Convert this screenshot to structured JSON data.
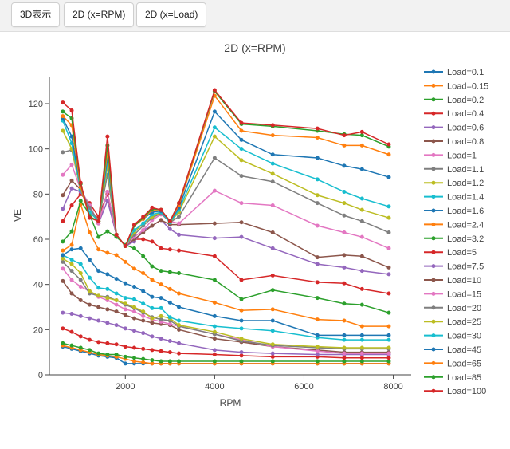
{
  "toolbar": {
    "btn_3d": "3D表示",
    "btn_rpm": "2D (x=RPM)",
    "btn_load": "2D (x=Load)"
  },
  "chart_data": {
    "type": "line",
    "title": "2D (x=RPM)",
    "xlabel": "RPM",
    "ylabel": "VE",
    "xlim": [
      300,
      8400
    ],
    "ylim": [
      0,
      132
    ],
    "xticks": [
      2000,
      4000,
      6000,
      8000
    ],
    "yticks": [
      0,
      20,
      40,
      60,
      80,
      100,
      120
    ],
    "grid": false,
    "legend": "right",
    "x": [
      600,
      800,
      1000,
      1200,
      1400,
      1600,
      1800,
      2000,
      2200,
      2400,
      2600,
      2800,
      3000,
      3200,
      4000,
      4600,
      5300,
      6300,
      6900,
      7300,
      7900
    ],
    "series": [
      {
        "name": "Load=0.1",
        "color": "#1f77b4",
        "values": [
          12.5,
          11.5,
          10.5,
          9.5,
          8.5,
          8,
          7.5,
          5,
          5,
          5,
          5,
          5,
          5,
          5,
          5,
          5,
          5,
          5,
          5,
          5,
          5
        ]
      },
      {
        "name": "Load=0.15",
        "color": "#ff7f0e",
        "values": [
          13,
          12,
          11,
          10,
          9,
          8.5,
          8,
          7,
          6,
          5.5,
          5,
          5,
          5,
          5,
          5,
          5,
          5,
          5,
          5,
          5,
          5
        ]
      },
      {
        "name": "Load=0.2",
        "color": "#2ca02c",
        "values": [
          14,
          13,
          12,
          11,
          9.5,
          9,
          9,
          8,
          7.5,
          7,
          6.5,
          6,
          6,
          6,
          6,
          6,
          6,
          6,
          6,
          6,
          6
        ]
      },
      {
        "name": "Load=0.4",
        "color": "#d62728",
        "values": [
          20.5,
          19,
          17,
          15.5,
          14.5,
          14,
          13.5,
          12.5,
          12,
          11.5,
          11,
          10.5,
          10,
          9.5,
          9,
          8.5,
          8,
          8,
          7.5,
          7.5,
          7.5
        ]
      },
      {
        "name": "Load=0.6",
        "color": "#9467bd",
        "values": [
          27.5,
          27,
          26,
          25,
          24,
          23,
          22,
          20.5,
          19.5,
          18.5,
          17,
          16,
          15,
          14,
          11,
          10,
          9.5,
          9,
          9,
          9,
          9
        ]
      },
      {
        "name": "Load=0.8",
        "color": "#8c564b",
        "values": [
          41.5,
          36,
          33,
          31,
          30,
          29,
          28,
          26.5,
          25,
          24,
          23,
          22.5,
          22,
          20,
          16,
          14.5,
          12.5,
          11,
          10,
          10,
          10
        ]
      },
      {
        "name": "Load=1",
        "color": "#e377c2",
        "values": [
          47,
          42,
          39,
          37,
          34.5,
          33,
          31,
          29,
          28,
          26,
          24.5,
          23.5,
          22.5,
          21.5,
          18,
          15.5,
          12.5,
          10.5,
          9.5,
          9.5,
          9.5
        ]
      },
      {
        "name": "Load=1.1",
        "color": "#7f7f7f",
        "values": [
          50,
          46,
          42,
          36,
          35,
          34.5,
          33,
          31,
          29.5,
          27.5,
          25.5,
          24.5,
          24,
          21.5,
          18,
          15,
          13,
          12,
          11.5,
          11.5,
          11.5
        ]
      },
      {
        "name": "Load=1.2",
        "color": "#bcbd22",
        "values": [
          51.5,
          49,
          45,
          37,
          35,
          34,
          33,
          31.5,
          30,
          28,
          25,
          26,
          25,
          22,
          19,
          16,
          13.5,
          12.5,
          12,
          12,
          12
        ]
      },
      {
        "name": "Load=1.4",
        "color": "#17becf",
        "values": [
          53,
          51,
          49,
          43,
          38.5,
          38,
          36,
          34,
          33.5,
          31.5,
          29.5,
          29.5,
          25.5,
          24,
          21.5,
          20.5,
          19.5,
          16.5,
          15.5,
          15.5,
          15.5
        ]
      },
      {
        "name": "Load=1.6",
        "color": "#1f77b4",
        "values": [
          53,
          55.5,
          56,
          51,
          46,
          44.5,
          42.5,
          40.5,
          39,
          37,
          34.5,
          34,
          32,
          30,
          26,
          24,
          24,
          17.5,
          17.5,
          17.5,
          17.5
        ]
      },
      {
        "name": "Load=2.4",
        "color": "#ff7f0e",
        "values": [
          55,
          57.5,
          75.5,
          63,
          55.5,
          54,
          53,
          50,
          47,
          45,
          42,
          40,
          38,
          36,
          32,
          28.5,
          29,
          24.5,
          24,
          21.5,
          21.5
        ]
      },
      {
        "name": "Load=3.2",
        "color": "#2ca02c",
        "values": [
          59,
          63.5,
          77,
          71,
          61,
          63.5,
          61,
          57.5,
          56,
          52.5,
          48,
          46,
          45.5,
          45,
          42,
          33.5,
          37.5,
          34,
          31.5,
          31,
          27.5
        ]
      },
      {
        "name": "Load=5",
        "color": "#d62728",
        "values": [
          68,
          75,
          80,
          76,
          70,
          80,
          62,
          57,
          60,
          60,
          59,
          56,
          55.5,
          55,
          52.5,
          42,
          44,
          41,
          40.5,
          38,
          36
        ]
      },
      {
        "name": "Load=7.5",
        "color": "#9467bd",
        "values": [
          73.5,
          82.5,
          81,
          74,
          67,
          77,
          62,
          57,
          59,
          64,
          66,
          68.5,
          64.5,
          62,
          60.5,
          61,
          56,
          49,
          47.5,
          46,
          44.5
        ]
      },
      {
        "name": "Load=10",
        "color": "#8c564b",
        "values": [
          79.5,
          86,
          82,
          75,
          67,
          81,
          62,
          57,
          60,
          63,
          66,
          68.5,
          66.5,
          66.5,
          67,
          67.5,
          63,
          52,
          53,
          52.5,
          47.5
        ]
      },
      {
        "name": "Load=15",
        "color": "#e377c2",
        "values": [
          88.5,
          93,
          82,
          75,
          67,
          81,
          62,
          57,
          61,
          64,
          68.5,
          71,
          68,
          67,
          81.5,
          76,
          75,
          66,
          63,
          61,
          56
        ]
      },
      {
        "name": "Load=20",
        "color": "#7f7f7f",
        "values": [
          98.5,
          99.5,
          82,
          74,
          68,
          88.5,
          62,
          57,
          62,
          66,
          69.5,
          71.5,
          67.5,
          70,
          96,
          88,
          85.5,
          76,
          70.5,
          68,
          63
        ]
      },
      {
        "name": "Load=25",
        "color": "#bcbd22",
        "values": [
          108,
          100,
          82,
          72,
          68,
          92,
          62,
          57,
          63,
          67,
          70,
          72,
          67.5,
          72,
          105.5,
          95,
          89,
          79.5,
          76,
          73,
          69.5
        ]
      },
      {
        "name": "Load=30",
        "color": "#17becf",
        "values": [
          112.5,
          102.5,
          82,
          72,
          68,
          94,
          62,
          57,
          64,
          67,
          71,
          72,
          67.5,
          73,
          109.5,
          100,
          93.5,
          86.5,
          81,
          78,
          74.5
        ]
      },
      {
        "name": "Load=45",
        "color": "#1f77b4",
        "values": [
          113.5,
          105.5,
          83,
          70,
          68,
          96,
          62,
          57,
          66,
          69,
          72,
          72.5,
          68,
          74,
          116.5,
          104,
          97.5,
          96,
          92.5,
          91,
          87.5
        ]
      },
      {
        "name": "Load=65",
        "color": "#ff7f0e",
        "values": [
          114.5,
          110.5,
          83,
          70,
          68,
          98.5,
          62,
          57,
          66,
          69,
          73,
          73,
          68,
          75,
          123.5,
          108,
          106,
          105,
          101.5,
          101.5,
          97.5
        ]
      },
      {
        "name": "Load=85",
        "color": "#2ca02c",
        "values": [
          116.5,
          113.5,
          84.5,
          70,
          68,
          101.5,
          62,
          57,
          66,
          69.5,
          73.5,
          73,
          68,
          76,
          125.5,
          111,
          110,
          108,
          106.5,
          106,
          101
        ]
      },
      {
        "name": "Load=100",
        "color": "#d62728",
        "values": [
          120.5,
          117,
          85,
          69.5,
          68,
          105.5,
          62,
          57,
          66.5,
          70,
          74,
          73,
          68,
          76,
          126,
          111.5,
          110.5,
          109,
          106,
          107.5,
          102
        ]
      }
    ]
  }
}
